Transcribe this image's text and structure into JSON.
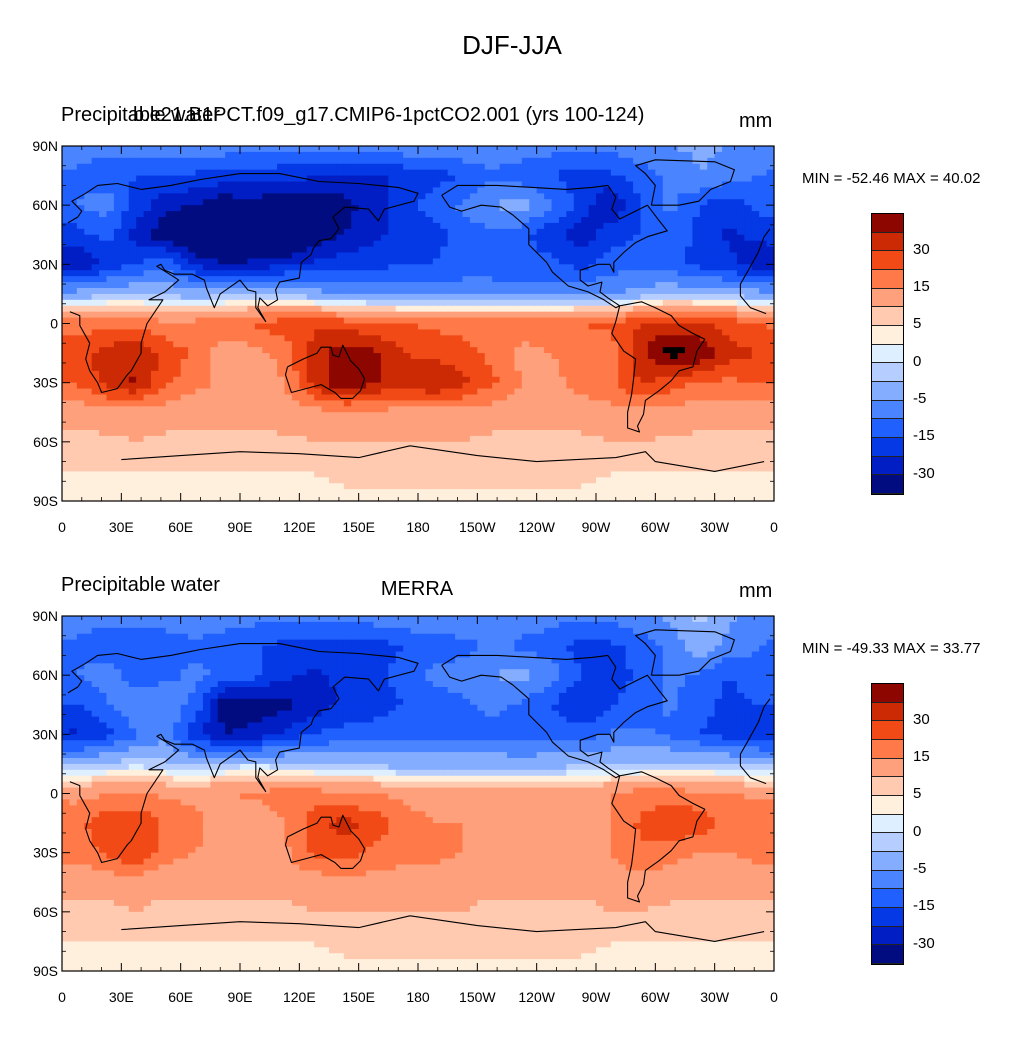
{
  "title": "DJF-JJA",
  "colorbar_colors": [
    "#000c80",
    "#001ec4",
    "#0539e6",
    "#2060ff",
    "#4b84ff",
    "#85adff",
    "#b6ceff",
    "#def0ff",
    "#fff0dd",
    "#ffcab0",
    "#ffa07c",
    "#ff7a48",
    "#f24a16",
    "#cc2a05",
    "#8e0600"
  ],
  "colorbar_labels": [
    "30",
    "15",
    "5",
    "0",
    "-5",
    "-15",
    "-30"
  ],
  "panels": [
    {
      "left_title": "Precipitable water",
      "case_title": "b.e21.B1PCT.f09_g17.CMIP6-1pctCO2.001 (yrs 100-124)",
      "center_title": "",
      "units": "mm",
      "minmax": "MIN = -52.46 MAX =  40.02",
      "grid": [
        [
          -13,
          -13,
          -12,
          -12,
          -11,
          -12,
          -13,
          -14,
          -14,
          -13,
          -12,
          -11,
          -10,
          -10,
          -11,
          -12,
          -13,
          -14,
          -13,
          -11,
          -10,
          -9,
          -10,
          -12
        ],
        [
          -16,
          -18,
          -20,
          -20,
          -21,
          -22,
          -22,
          -23,
          -24,
          -25,
          -26,
          -24,
          -22,
          -20,
          -16,
          -18,
          -20,
          -22,
          -21,
          -18,
          -14,
          -10,
          -12,
          -15
        ],
        [
          -15,
          -12,
          -22,
          -28,
          -30,
          -34,
          -32,
          -36,
          -36,
          -32,
          -28,
          -22,
          -18,
          -14,
          -10,
          -8,
          -14,
          -22,
          -30,
          -20,
          -14,
          -20,
          -24,
          -18
        ],
        [
          -22,
          -18,
          -28,
          -34,
          -40,
          -42,
          -42,
          -42,
          -34,
          -30,
          -26,
          -24,
          -22,
          -18,
          -16,
          -18,
          -24,
          -28,
          -22,
          -20,
          -16,
          -22,
          -26,
          -24
        ],
        [
          -30,
          -24,
          -20,
          -16,
          -26,
          -30,
          -28,
          -26,
          -24,
          -22,
          -22,
          -20,
          -20,
          -18,
          -18,
          -20,
          -18,
          -22,
          -18,
          -16,
          -18,
          -22,
          -24,
          -28
        ],
        [
          -8,
          -6,
          -5,
          -6,
          -8,
          -6,
          -5,
          -6,
          -8,
          -10,
          -10,
          -12,
          -12,
          -12,
          -12,
          -12,
          -12,
          -10,
          -10,
          -8,
          -6,
          -6,
          -7,
          -8
        ],
        [
          12,
          14,
          13,
          11,
          12,
          14,
          16,
          18,
          19,
          18,
          16,
          15,
          14,
          14,
          14,
          14,
          14,
          15,
          16,
          20,
          22,
          20,
          18,
          15
        ],
        [
          18,
          22,
          24,
          18,
          14,
          6,
          8,
          12,
          22,
          28,
          26,
          20,
          18,
          16,
          14,
          8,
          10,
          14,
          12,
          24,
          32,
          30,
          22,
          20
        ],
        [
          16,
          22,
          26,
          16,
          12,
          8,
          6,
          10,
          22,
          30,
          26,
          22,
          26,
          22,
          16,
          10,
          8,
          12,
          14,
          20,
          18,
          14,
          14,
          16
        ],
        [
          6,
          8,
          8,
          7,
          6,
          6,
          6,
          8,
          8,
          9,
          9,
          8,
          8,
          8,
          7,
          6,
          6,
          7,
          8,
          9,
          8,
          7,
          6,
          6
        ],
        [
          4,
          4,
          5,
          4,
          4,
          4,
          4,
          4,
          5,
          5,
          5,
          5,
          5,
          5,
          4,
          4,
          4,
          4,
          5,
          5,
          4,
          4,
          4,
          4
        ],
        [
          2,
          2,
          2,
          2,
          2,
          2,
          2,
          2,
          2,
          3,
          3,
          3,
          3,
          3,
          3,
          3,
          3,
          3,
          2,
          2,
          2,
          2,
          2,
          2
        ],
        [
          1,
          1,
          1,
          1,
          1,
          1,
          1,
          1,
          1,
          1,
          1,
          1,
          1,
          1,
          1,
          1,
          1,
          1,
          1,
          1,
          1,
          1,
          1,
          1
        ]
      ]
    },
    {
      "left_title": "Precipitable water",
      "case_title": "",
      "center_title": "MERRA",
      "units": "mm",
      "minmax": "MIN = -49.33 MAX =  33.77",
      "grid": [
        [
          -13,
          -13,
          -12,
          -12,
          -11,
          -12,
          -13,
          -14,
          -14,
          -13,
          -12,
          -11,
          -10,
          -10,
          -11,
          -12,
          -13,
          -14,
          -13,
          -11,
          -9,
          -4,
          -9,
          -12
        ],
        [
          -16,
          -18,
          -20,
          -18,
          -16,
          -18,
          -20,
          -21,
          -22,
          -22,
          -22,
          -20,
          -18,
          -17,
          -14,
          -16,
          -18,
          -22,
          -21,
          -18,
          -14,
          -6,
          -12,
          -15
        ],
        [
          -15,
          -12,
          -18,
          -16,
          -14,
          -16,
          -18,
          -24,
          -26,
          -24,
          -22,
          -18,
          -14,
          -12,
          -10,
          -8,
          -12,
          -20,
          -24,
          -18,
          -14,
          -16,
          -20,
          -16
        ],
        [
          -20,
          -16,
          -10,
          -12,
          -16,
          -34,
          -34,
          -32,
          -28,
          -24,
          -22,
          -20,
          -18,
          -16,
          -14,
          -16,
          -20,
          -26,
          -20,
          -18,
          -14,
          -18,
          -22,
          -20
        ],
        [
          -26,
          -22,
          -16,
          -12,
          -24,
          -30,
          -28,
          -24,
          -20,
          -18,
          -18,
          -16,
          -16,
          -16,
          -16,
          -18,
          -16,
          -18,
          -14,
          -14,
          -16,
          -20,
          -22,
          -24
        ],
        [
          -6,
          -4,
          -3,
          -4,
          -6,
          -4,
          -3,
          -4,
          -5,
          -6,
          -6,
          -7,
          -7,
          -7,
          -7,
          -7,
          -7,
          -6,
          -6,
          -5,
          -4,
          -4,
          -5,
          -6
        ],
        [
          8,
          10,
          10,
          9,
          8,
          10,
          11,
          12,
          12,
          11,
          10,
          9,
          8,
          8,
          8,
          8,
          8,
          9,
          10,
          12,
          12,
          11,
          10,
          9
        ],
        [
          14,
          18,
          20,
          14,
          12,
          6,
          6,
          10,
          18,
          22,
          18,
          12,
          10,
          10,
          9,
          6,
          8,
          10,
          10,
          16,
          20,
          18,
          14,
          14
        ],
        [
          12,
          16,
          20,
          12,
          10,
          8,
          6,
          9,
          16,
          18,
          14,
          12,
          12,
          10,
          9,
          8,
          7,
          9,
          10,
          14,
          12,
          10,
          10,
          12
        ],
        [
          6,
          7,
          7,
          6,
          6,
          6,
          6,
          7,
          7,
          8,
          8,
          7,
          7,
          7,
          6,
          6,
          6,
          6,
          7,
          8,
          7,
          6,
          6,
          6
        ],
        [
          4,
          4,
          5,
          4,
          4,
          4,
          4,
          4,
          5,
          5,
          5,
          5,
          5,
          5,
          4,
          4,
          4,
          4,
          5,
          5,
          4,
          4,
          4,
          4
        ],
        [
          2,
          2,
          2,
          2,
          2,
          2,
          2,
          2,
          2,
          3,
          3,
          3,
          3,
          3,
          3,
          3,
          3,
          3,
          2,
          2,
          2,
          2,
          2,
          2
        ],
        [
          1,
          1,
          1,
          1,
          1,
          1,
          1,
          1,
          1,
          1,
          1,
          1,
          1,
          1,
          1,
          1,
          1,
          1,
          1,
          1,
          1,
          1,
          1,
          1
        ]
      ]
    }
  ],
  "chart_data": {
    "type": "heatmap",
    "title": "DJF-JJA",
    "projection": "cylindrical equidistant, longitude 0 to 360",
    "x_ticks": [
      "0",
      "30E",
      "60E",
      "90E",
      "120E",
      "150E",
      "180",
      "150W",
      "120W",
      "90W",
      "60W",
      "30W",
      "0"
    ],
    "y_ticks": [
      "90N",
      "60N",
      "30N",
      "0",
      "30S",
      "60S",
      "90S"
    ],
    "xlim": [
      0,
      360
    ],
    "ylim": [
      -90,
      90
    ],
    "colorbar_levels": [
      -40,
      -30,
      -25,
      -20,
      -15,
      -10,
      -5,
      -2,
      0,
      2,
      5,
      10,
      15,
      20,
      25,
      30,
      40
    ],
    "colorbar_labels": [
      "30",
      "15",
      "5",
      "0",
      "-5",
      "-15",
      "-30"
    ],
    "series": [
      {
        "name": "b.e21.B1PCT.f09_g17.CMIP6-1pctCO2.001 (yrs 100-124)",
        "units": "mm",
        "min": -52.46,
        "max": 40.02
      },
      {
        "name": "MERRA",
        "units": "mm",
        "min": -49.33,
        "max": 33.77
      }
    ]
  }
}
